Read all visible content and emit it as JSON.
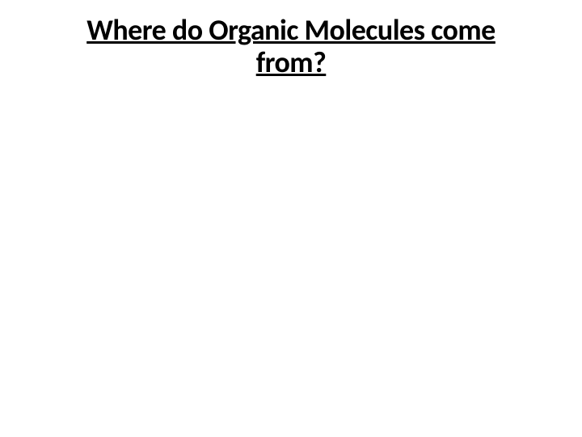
{
  "slide": {
    "title_line1": "Where do Organic Molecules come",
    "title_line2": "from?",
    "title_fontsize": 36,
    "title_color": "#000000",
    "background_color": "#ffffff",
    "font_weight": "bold",
    "text_decoration": "underline"
  }
}
